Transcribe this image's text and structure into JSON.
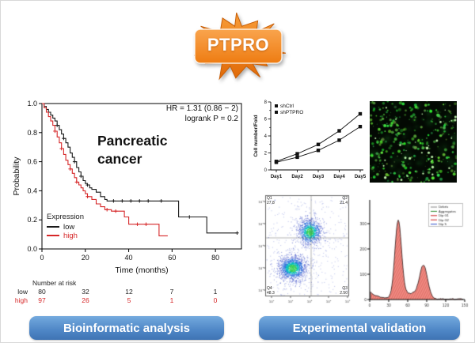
{
  "starburst": {
    "label": "PTPRO",
    "fill_color": "#ef7d12"
  },
  "km": {
    "hr_text": "HR = 1.31 (0.86 − 2)",
    "logrank_text": "logrank P = 0.2",
    "disease_line1": "Pancreatic",
    "disease_line2": "cancer",
    "ylabel": "Probability",
    "xlabel": "Time (months)",
    "x_ticks": [
      "0",
      "20",
      "40",
      "60",
      "80"
    ],
    "y_ticks": [
      "0.0",
      "0.2",
      "0.4",
      "0.6",
      "0.8",
      "1.0"
    ],
    "legend_title": "Expression",
    "series": [
      {
        "name": "low",
        "color": "#1a1a1a",
        "points": [
          [
            0,
            1
          ],
          [
            1,
            0.98
          ],
          [
            2,
            0.96
          ],
          [
            3,
            0.94
          ],
          [
            4,
            0.92
          ],
          [
            5,
            0.9
          ],
          [
            6,
            0.88
          ],
          [
            7,
            0.85
          ],
          [
            8,
            0.82
          ],
          [
            9,
            0.79
          ],
          [
            10,
            0.76
          ],
          [
            11,
            0.73
          ],
          [
            12,
            0.7
          ],
          [
            13,
            0.66
          ],
          [
            14,
            0.63
          ],
          [
            15,
            0.6
          ],
          [
            16,
            0.56
          ],
          [
            17,
            0.53
          ],
          [
            18,
            0.5
          ],
          [
            19,
            0.47
          ],
          [
            20,
            0.45
          ],
          [
            21,
            0.44
          ],
          [
            22,
            0.42
          ],
          [
            23,
            0.41
          ],
          [
            25,
            0.39
          ],
          [
            27,
            0.36
          ],
          [
            29,
            0.34
          ],
          [
            30,
            0.33
          ],
          [
            62,
            0.33
          ],
          [
            63,
            0.22
          ],
          [
            75,
            0.22
          ],
          [
            76,
            0.11
          ],
          [
            90,
            0.11
          ]
        ],
        "censors": [
          [
            7,
            0.85
          ],
          [
            10,
            0.76
          ],
          [
            15,
            0.6
          ],
          [
            18,
            0.5
          ],
          [
            21,
            0.44
          ],
          [
            33,
            0.33
          ],
          [
            37,
            0.33
          ],
          [
            41,
            0.33
          ],
          [
            45,
            0.33
          ],
          [
            49,
            0.33
          ],
          [
            55,
            0.33
          ],
          [
            68,
            0.22
          ],
          [
            90,
            0.11
          ]
        ]
      },
      {
        "name": "high",
        "color": "#d62728",
        "points": [
          [
            0,
            1
          ],
          [
            1,
            0.97
          ],
          [
            2,
            0.94
          ],
          [
            3,
            0.91
          ],
          [
            4,
            0.88
          ],
          [
            5,
            0.85
          ],
          [
            6,
            0.81
          ],
          [
            7,
            0.77
          ],
          [
            8,
            0.73
          ],
          [
            9,
            0.69
          ],
          [
            10,
            0.65
          ],
          [
            11,
            0.61
          ],
          [
            12,
            0.58
          ],
          [
            13,
            0.55
          ],
          [
            14,
            0.52
          ],
          [
            15,
            0.49
          ],
          [
            16,
            0.46
          ],
          [
            17,
            0.44
          ],
          [
            18,
            0.42
          ],
          [
            19,
            0.4
          ],
          [
            20,
            0.38
          ],
          [
            21,
            0.36
          ],
          [
            23,
            0.34
          ],
          [
            25,
            0.31
          ],
          [
            27,
            0.29
          ],
          [
            29,
            0.27
          ],
          [
            32,
            0.26
          ],
          [
            36,
            0.26
          ],
          [
            38,
            0.22
          ],
          [
            40,
            0.17
          ],
          [
            52,
            0.17
          ],
          [
            54,
            0.09
          ],
          [
            58,
            0.09
          ]
        ],
        "censors": [
          [
            6,
            0.81
          ],
          [
            9,
            0.69
          ],
          [
            13,
            0.55
          ],
          [
            16,
            0.46
          ],
          [
            21,
            0.36
          ],
          [
            30,
            0.27
          ],
          [
            34,
            0.26
          ],
          [
            44,
            0.17
          ],
          [
            48,
            0.17
          ]
        ]
      }
    ],
    "risk": {
      "title": "Number at risk",
      "rows": [
        {
          "label": "low",
          "color": "#1a1a1a",
          "values": [
            "80",
            "32",
            "12",
            "7",
            "1"
          ]
        },
        {
          "label": "high",
          "color": "#d62728",
          "values": [
            "97",
            "26",
            "5",
            "1",
            "0"
          ]
        }
      ]
    }
  },
  "growth": {
    "ylabel": "Cell number/Fold",
    "x_labels": [
      "Day1",
      "Day2",
      "Day3",
      "Day4",
      "Day5"
    ],
    "y_ticks": [
      "0",
      "2",
      "4",
      "6",
      "8"
    ],
    "series": [
      {
        "name": "shCtrl",
        "values": [
          1.0,
          1.9,
          3.0,
          4.6,
          6.6
        ]
      },
      {
        "name": "shPTPRO",
        "values": [
          0.9,
          1.5,
          2.3,
          3.5,
          5.1
        ]
      }
    ]
  },
  "flow": {
    "quadrants": {
      "q1": {
        "name": "Q1",
        "value": "27.8"
      },
      "q2": {
        "name": "Q2",
        "value": "21.4"
      },
      "q3": {
        "name": "Q3",
        "value": "2.50"
      },
      "q4": {
        "name": "Q4",
        "value": "48.3"
      }
    },
    "y_ticks": [
      "10⁵",
      "10⁴",
      "10³",
      "10²",
      "10¹"
    ],
    "x_ticks": [
      "10¹",
      "10²",
      "10³",
      "10⁴",
      "10⁵"
    ]
  },
  "histogram": {
    "legend": [
      "Debris",
      "Aggregates",
      "Dip G1",
      "Dip G2",
      "Dip S"
    ],
    "x_ticks": [
      "0",
      "30",
      "60",
      "90",
      "120",
      "150"
    ],
    "y_ticks": [
      "0",
      "100",
      "200",
      "300"
    ]
  },
  "banners": {
    "bioinformatic": "Bioinformatic analysis",
    "experimental": "Experimental validation"
  },
  "chart_data": [
    {
      "type": "line",
      "subtype": "kaplan-meier",
      "title": "Pancreatic cancer",
      "xlabel": "Time (months)",
      "ylabel": "Probability",
      "xlim": [
        0,
        92
      ],
      "ylim": [
        0,
        1
      ],
      "annotations": [
        "HR = 1.31 (0.86 − 2)",
        "logrank P = 0.2"
      ],
      "legend_title": "Expression",
      "series": [
        {
          "name": "low",
          "color": "#1a1a1a"
        },
        {
          "name": "high",
          "color": "#d62728"
        }
      ],
      "number_at_risk": {
        "times": [
          0,
          20,
          40,
          60,
          80
        ],
        "low": [
          80,
          32,
          12,
          7,
          1
        ],
        "high": [
          97,
          26,
          5,
          1,
          0
        ]
      }
    },
    {
      "type": "line",
      "categories": [
        "Day1",
        "Day2",
        "Day3",
        "Day4",
        "Day5"
      ],
      "ylabel": "Cell number/Fold",
      "ylim": [
        0,
        8
      ],
      "series": [
        {
          "name": "shCtrl",
          "values": [
            1.0,
            1.9,
            3.0,
            4.6,
            6.6
          ]
        },
        {
          "name": "shPTPRO",
          "values": [
            0.9,
            1.5,
            2.3,
            3.5,
            5.1
          ]
        }
      ]
    }
  ]
}
